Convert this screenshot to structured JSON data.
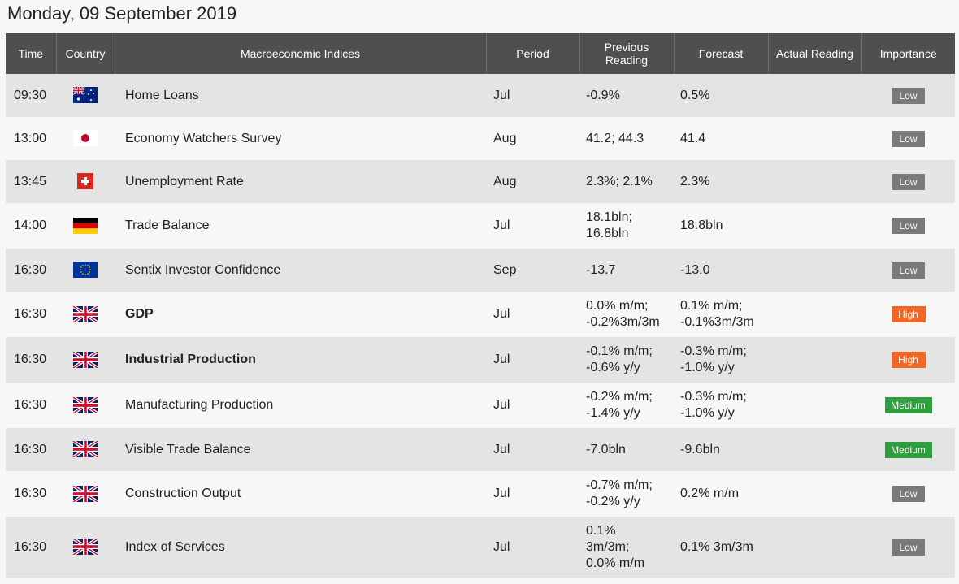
{
  "date_title": "Monday, 09 September 2019",
  "columns": {
    "time": "Time",
    "country": "Country",
    "indices": "Macroeconomic Indices",
    "period": "Period",
    "previous": "Previous Reading",
    "forecast": "Forecast",
    "actual": "Actual Reading",
    "importance": "Importance"
  },
  "colors": {
    "low": "#7a7a7a",
    "high": "#f26522",
    "medium": "#2e9e3e",
    "header": "#4f4f4f"
  },
  "rows": [
    {
      "time": "09:30",
      "flag": "au-flag-icon",
      "name": "Home Loans",
      "bold": false,
      "period": "Jul",
      "previous": [
        "-0.9%"
      ],
      "forecast": [
        "0.5%"
      ],
      "actual": "",
      "importance": "Low"
    },
    {
      "time": "13:00",
      "flag": "jp-flag-icon",
      "name": "Economy Watchers Survey",
      "bold": false,
      "period": "Aug",
      "previous": [
        "41.2; 44.3"
      ],
      "forecast": [
        "41.4"
      ],
      "actual": "",
      "importance": "Low"
    },
    {
      "time": "13:45",
      "flag": "ch-flag-icon",
      "name": "Unemployment Rate",
      "bold": false,
      "period": "Aug",
      "previous": [
        "2.3%; 2.1%"
      ],
      "forecast": [
        "2.3%"
      ],
      "actual": "",
      "importance": "Low"
    },
    {
      "time": "14:00",
      "flag": "de-flag-icon",
      "name": "Trade Balance",
      "bold": false,
      "period": "Jul",
      "previous": [
        "18.1bln;",
        "16.8bln"
      ],
      "forecast": [
        "18.8bln"
      ],
      "actual": "",
      "importance": "Low"
    },
    {
      "time": "16:30",
      "flag": "eu-flag-icon",
      "name": "Sentix Investor Confidence",
      "bold": false,
      "period": "Sep",
      "previous": [
        "-13.7"
      ],
      "forecast": [
        "-13.0"
      ],
      "actual": "",
      "importance": "Low"
    },
    {
      "time": "16:30",
      "flag": "uk-flag-icon",
      "name": "GDP",
      "bold": true,
      "period": "Jul",
      "previous": [
        "0.0% m/m;",
        "-0.2%3m/3m"
      ],
      "forecast": [
        "0.1% m/m;",
        "-0.1%3m/3m"
      ],
      "actual": "",
      "importance": "High"
    },
    {
      "time": "16:30",
      "flag": "uk-flag-icon",
      "name": "Industrial Production",
      "bold": true,
      "period": "Jul",
      "previous": [
        "-0.1% m/m;",
        "-0.6% y/y"
      ],
      "forecast": [
        "-0.3% m/m;",
        "-1.0% y/y"
      ],
      "actual": "",
      "importance": "High"
    },
    {
      "time": "16:30",
      "flag": "uk-flag-icon",
      "name": "Manufacturing Production",
      "bold": false,
      "period": "Jul",
      "previous": [
        "-0.2% m/m;",
        "-1.4% y/y"
      ],
      "forecast": [
        "-0.3% m/m;",
        "-1.0% y/y"
      ],
      "actual": "",
      "importance": "Medium"
    },
    {
      "time": "16:30",
      "flag": "uk-flag-icon",
      "name": "Visible Trade Balance",
      "bold": false,
      "period": "Jul",
      "previous": [
        "-7.0bln"
      ],
      "forecast": [
        "-9.6bln"
      ],
      "actual": "",
      "importance": "Medium"
    },
    {
      "time": "16:30",
      "flag": "uk-flag-icon",
      "name": "Construction Output",
      "bold": false,
      "period": "Jul",
      "previous": [
        "-0.7% m/m;",
        "-0.2% y/y"
      ],
      "forecast": [
        "0.2% m/m"
      ],
      "actual": "",
      "importance": "Low"
    },
    {
      "time": "16:30",
      "flag": "uk-flag-icon",
      "name": "Index of Services",
      "bold": false,
      "period": "Jul",
      "previous": [
        "0.1%",
        "3m/3m;",
        "0.0% m/m"
      ],
      "forecast": [
        "0.1% 3m/3m"
      ],
      "actual": "",
      "importance": "Low"
    }
  ]
}
